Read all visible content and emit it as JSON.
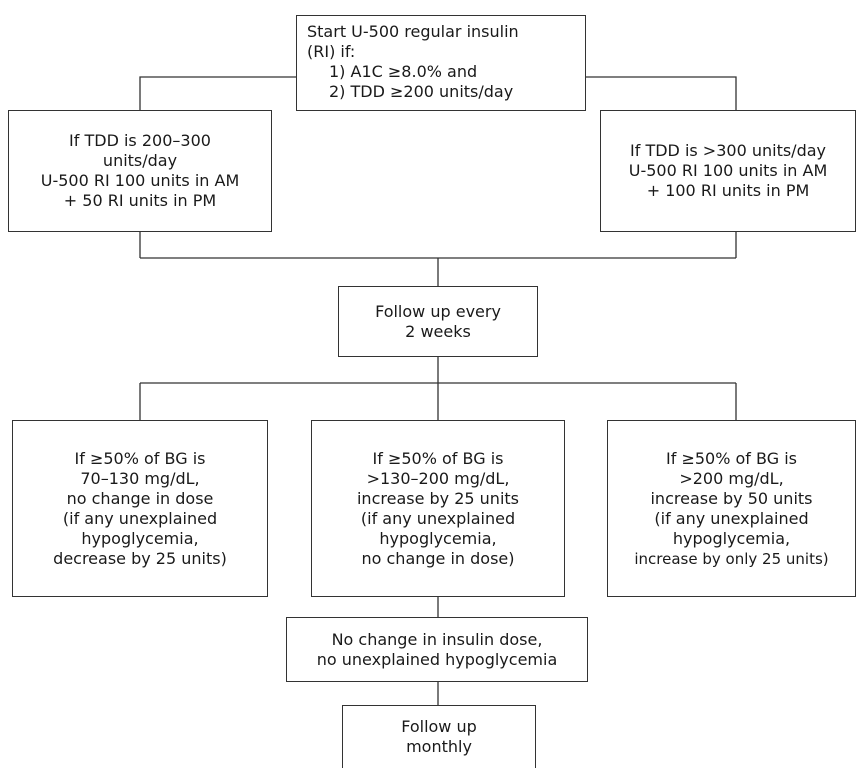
{
  "start": {
    "lines": [
      "Start U-500 regular insulin",
      "(RI) if:",
      "1) A1C ≥8.0% and",
      "2) TDD ≥200 units/day"
    ]
  },
  "left_dose": {
    "lines": [
      "If TDD is 200–300",
      "units/day",
      "U-500 RI 100 units in AM",
      "+ 50 RI units in PM"
    ]
  },
  "right_dose": {
    "lines": [
      "If TDD is >300 units/day",
      "U-500 RI 100 units in AM",
      "+ 100 RI units in PM"
    ]
  },
  "followup_2w": {
    "lines": [
      "Follow up every",
      "2 weeks"
    ]
  },
  "bg_low": {
    "lines": [
      "If ≥50% of BG is",
      "70–130 mg/dL,",
      "no change in dose",
      "(if any unexplained",
      "hypoglycemia,",
      "decrease by 25 units)"
    ]
  },
  "bg_mid": {
    "lines": [
      "If ≥50% of BG is",
      ">130–200 mg/dL,",
      "increase by 25 units",
      "(if any unexplained",
      "hypoglycemia,",
      "no change in dose)"
    ]
  },
  "bg_high": {
    "lines": [
      "If ≥50% of BG is",
      ">200 mg/dL,",
      "increase by 50 units",
      "(if any unexplained",
      "hypoglycemia,",
      "increase by only 25 units)"
    ]
  },
  "stable": {
    "lines": [
      "No change in insulin dose,",
      "no unexplained hypoglycemia"
    ]
  },
  "followup_monthly": {
    "lines": [
      "Follow up",
      "monthly"
    ]
  }
}
